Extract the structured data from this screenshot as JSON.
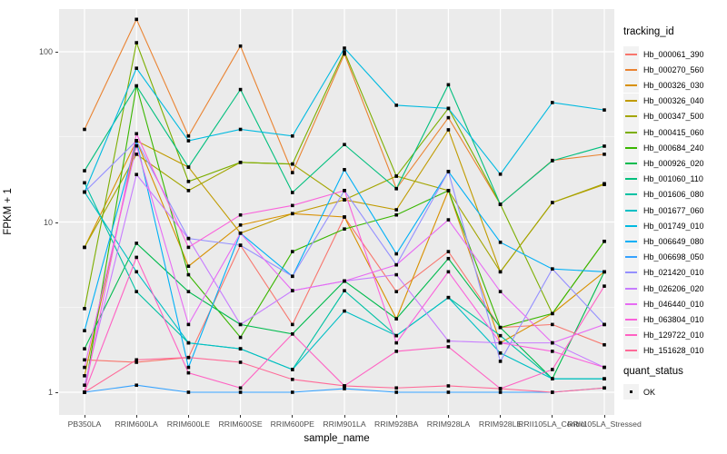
{
  "figure": {
    "background": "#FFFFFF",
    "panel_background": "#EBEBEB",
    "gridline_color": "#FFFFFF",
    "axis_text_color": "#4D4D4D",
    "marker_color": "#000000"
  },
  "chart_data": {
    "type": "line",
    "title": "",
    "xlabel": "sample_name",
    "ylabel": "FPKM + 1",
    "y_scale": "log10",
    "y_ticks": [
      1,
      10,
      100
    ],
    "y_tick_labels": [
      "1",
      "10",
      "100"
    ],
    "y_minor_ticks": [
      3.1623,
      31.623
    ],
    "ylim": [
      0.74,
      178
    ],
    "grid": true,
    "legend_position": "right",
    "categories": [
      "PB350LA",
      "RRIM600LA",
      "RRIM600LE",
      "RRIM600SE",
      "RRIM600PE",
      "RRIM901LA",
      "RRIM928BA",
      "RRIM928LA",
      "RRIM928LE",
      "RRII105LA_Control",
      "RRII105LA_Stressed"
    ],
    "legend": {
      "title": "tracking_id"
    },
    "quant_legend": {
      "title": "quant_status",
      "items": [
        {
          "label": "OK",
          "marker": "black-square"
        }
      ]
    },
    "series": [
      {
        "name": "Hb_000061_390",
        "color": "#F8766D",
        "values": [
          1.55,
          1.5,
          1.6,
          7.3,
          2.5,
          10.7,
          3.9,
          6.7,
          2.4,
          2.5,
          1.9
        ]
      },
      {
        "name": "Hb_000270_560",
        "color": "#EA8331",
        "values": [
          35,
          155,
          32,
          108,
          19.5,
          97,
          15.7,
          41,
          12.7,
          23,
          25
        ]
      },
      {
        "name": "Hb_000326_030",
        "color": "#D89000",
        "values": [
          7.1,
          30,
          5.5,
          9.6,
          11.2,
          10.7,
          2.7,
          15.3,
          1.95,
          2.9,
          5.1
        ]
      },
      {
        "name": "Hb_000326_040",
        "color": "#C09B00",
        "values": [
          1.25,
          30,
          21,
          8.6,
          11.2,
          13.5,
          11.8,
          34.8,
          5.1,
          13,
          16.6
        ]
      },
      {
        "name": "Hb_000347_500",
        "color": "#A3A500",
        "values": [
          7.1,
          25,
          15.3,
          22.4,
          21.9,
          13.5,
          18.6,
          15.3,
          5.1,
          13,
          16.8
        ]
      },
      {
        "name": "Hb_000415_060",
        "color": "#7CAE00",
        "values": [
          3.1,
          113,
          17.3,
          22.4,
          21.9,
          100,
          18.6,
          46.5,
          12.7,
          2.9,
          7.7
        ]
      },
      {
        "name": "Hb_000684_240",
        "color": "#39B600",
        "values": [
          1.0,
          63,
          4.9,
          2.1,
          6.7,
          9.1,
          11.0,
          15.3,
          2.4,
          2.9,
          7.7
        ]
      },
      {
        "name": "Hb_000926_020",
        "color": "#00BB4E",
        "values": [
          1.8,
          7.5,
          3.9,
          2.5,
          2.2,
          4.5,
          2.7,
          6.1,
          2.4,
          1.2,
          5.1
        ]
      },
      {
        "name": "Hb_001060_110",
        "color": "#00BF7D",
        "values": [
          20,
          63,
          21,
          60,
          14.9,
          28.5,
          15.7,
          64,
          12.7,
          22.9,
          27.9
        ]
      },
      {
        "name": "Hb_001606_080",
        "color": "#00C1A3",
        "values": [
          17,
          3.9,
          1.95,
          1.8,
          1.36,
          3.95,
          2.15,
          3.6,
          2.15,
          1.2,
          1.2
        ]
      },
      {
        "name": "Hb_001677_060",
        "color": "#00BFC4",
        "values": [
          15,
          5.1,
          1.95,
          1.8,
          1.36,
          3.0,
          2.15,
          3.6,
          1.7,
          1.2,
          1.2
        ]
      },
      {
        "name": "Hb_001749_010",
        "color": "#00BAE0",
        "values": [
          15,
          80,
          30,
          35,
          32,
          105,
          48.5,
          46.5,
          19.1,
          50.3,
          45.5
        ]
      },
      {
        "name": "Hb_006649_080",
        "color": "#00B0F6",
        "values": [
          2.3,
          30,
          1.4,
          8.6,
          4.8,
          20.3,
          6.5,
          19.8,
          7.6,
          5.3,
          5.1
        ]
      },
      {
        "name": "Hb_006698_050",
        "color": "#35A2FF",
        "values": [
          1.0,
          1.1,
          1.0,
          1.0,
          1.0,
          1.05,
          1.0,
          1.0,
          1.0,
          1.0,
          1.06
        ]
      },
      {
        "name": "Hb_021420_010",
        "color": "#9590FF",
        "values": [
          15,
          30,
          8.0,
          7.3,
          4.8,
          15.3,
          5.6,
          19.8,
          1.52,
          5.3,
          2.5
        ]
      },
      {
        "name": "Hb_026206_020",
        "color": "#C77CFF",
        "values": [
          1.1,
          19,
          8.0,
          2.5,
          3.95,
          4.5,
          4.9,
          2.0,
          1.95,
          1.95,
          1.4
        ]
      },
      {
        "name": "Hb_046440_010",
        "color": "#E76BF3",
        "values": [
          1.4,
          28,
          2.5,
          8.6,
          3.95,
          4.5,
          5.6,
          10.3,
          3.9,
          1.95,
          2.5
        ]
      },
      {
        "name": "Hb_063804_010",
        "color": "#FA62DB",
        "values": [
          1.0,
          33,
          7.1,
          11,
          12.5,
          15.3,
          1.95,
          5.1,
          1.95,
          1.74,
          1.4
        ]
      },
      {
        "name": "Hb_129722_010",
        "color": "#FF61C3",
        "values": [
          1.0,
          6.2,
          1.3,
          1.06,
          2.2,
          1.09,
          1.74,
          1.85,
          1.05,
          1.36,
          4.2
        ]
      },
      {
        "name": "Hb_151628_010",
        "color": "#FF6A98",
        "values": [
          1.0,
          1.55,
          1.6,
          1.5,
          1.19,
          1.09,
          1.06,
          1.09,
          1.05,
          1.0,
          1.06
        ]
      }
    ]
  }
}
